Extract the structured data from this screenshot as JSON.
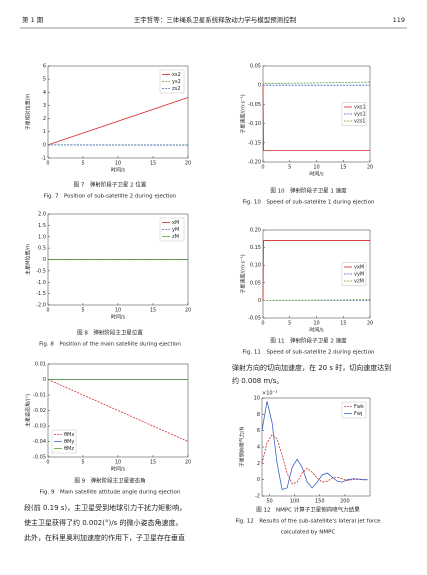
{
  "header": {
    "issue": "第 1 期",
    "running_title": "王宇哲等：三体绳系卫星系统释放动力学与模型预测控制",
    "page": "119"
  },
  "chart_data": [
    {
      "type": "line",
      "ylabel": "子星相对位置/m",
      "xlabel": "时间/s",
      "x": [
        0,
        20
      ],
      "xlim": [
        0,
        20
      ],
      "xticks": [
        0,
        5,
        10,
        15,
        20
      ],
      "ylim": [
        -1,
        6
      ],
      "yticks": [
        -1,
        0,
        1,
        2,
        3,
        4,
        5,
        6
      ],
      "legend": "upper right",
      "series": [
        {
          "name": "xs2",
          "color": "#d62728",
          "values": [
            0,
            3.6
          ]
        },
        {
          "name": "ys2",
          "color": "#5aa02c",
          "dash": true,
          "values": [
            0,
            0
          ]
        },
        {
          "name": "zs2",
          "color": "#3a62c9",
          "dash": true,
          "values": [
            0,
            -0.02
          ]
        }
      ],
      "caption": [
        "图 7　弹射阶段子卫星 2 位置",
        "Fig. 7　Position of sub-satellite 2 during ejection"
      ]
    },
    {
      "type": "line",
      "ylabel": "主星M位置/m",
      "xlabel": "时间/s",
      "x": [
        0,
        20
      ],
      "xlim": [
        0,
        20
      ],
      "xticks": [
        0,
        5,
        10,
        15,
        20
      ],
      "ylim": [
        -2,
        2
      ],
      "yticks": [
        {
          "value": -2,
          "label": "-2.0"
        },
        -1.5,
        {
          "value": -1,
          "label": "-1.0"
        },
        -0.5,
        0,
        0.5,
        {
          "value": 1,
          "label": "1.0"
        },
        1.5,
        {
          "value": 2,
          "label": "2.0"
        }
      ],
      "legend": "upper right",
      "series": [
        {
          "name": "xM",
          "color": "#d62728",
          "values": [
            0,
            0
          ]
        },
        {
          "name": "yM",
          "color": "#3a62c9",
          "dash": true,
          "values": [
            0,
            0
          ]
        },
        {
          "name": "zM",
          "color": "#5aa02c",
          "values": [
            0,
            0
          ]
        }
      ],
      "caption": [
        "图 8　弹射阶段主卫星位置",
        "Fig. 8　Position of the main satellite during ejection"
      ]
    },
    {
      "type": "line",
      "ylabel": "主星姿态角/(°)",
      "xlabel": "时间/s",
      "x": [
        0,
        20
      ],
      "xlim": [
        0,
        20
      ],
      "xticks": [
        0,
        5,
        10,
        15,
        20
      ],
      "ylim": [
        -0.05,
        0.01
      ],
      "yticks": [
        -0.05,
        -0.04,
        -0.03,
        -0.02,
        -0.01,
        0,
        0.01
      ],
      "legend": "lower left",
      "series": [
        {
          "name": "θMx",
          "color": "#d62728",
          "dash": true,
          "values": [
            0,
            -0.04
          ]
        },
        {
          "name": "θMy",
          "color": "#3a62c9",
          "values": [
            0,
            0
          ]
        },
        {
          "name": "θMz",
          "color": "#5aa02c",
          "values": [
            0,
            0
          ]
        }
      ],
      "caption": [
        "图 9　弹射阶段主卫星姿态角",
        "Fig. 9　Main satellite attitude angle during ejection"
      ]
    },
    {
      "type": "line",
      "ylabel": "子星速度/(m·s⁻¹)",
      "xlabel": "时间/s",
      "x": [
        0,
        0.1,
        20
      ],
      "xlim": [
        0,
        20
      ],
      "xticks": [
        0,
        5,
        10,
        15,
        20
      ],
      "ylim": [
        -0.2,
        0.05
      ],
      "yticks": [
        {
          "value": -0.2,
          "label": "-0.20"
        },
        -0.15,
        {
          "value": -0.1,
          "label": "-0.10"
        },
        -0.05,
        0,
        0.05
      ],
      "legend": "center right",
      "series": [
        {
          "name": "vxs1",
          "color": "#d62728",
          "values": [
            0,
            -0.17,
            -0.17
          ]
        },
        {
          "name": "vys1",
          "color": "#3a62c9",
          "dash": true,
          "values": [
            0,
            0,
            0
          ]
        },
        {
          "name": "vzs1",
          "color": "#5aa02c",
          "dash": true,
          "values": [
            0,
            0.004,
            0.008
          ]
        }
      ],
      "caption": [
        "图 10　弹射阶段子卫星 1 速度",
        "Fig. 10　Speed of sub-satellite 1 during ejection"
      ]
    },
    {
      "type": "line",
      "ylabel": "子星速度/(m·s⁻¹)",
      "xlabel": "时间/s",
      "x": [
        0,
        0.1,
        20
      ],
      "xlim": [
        0,
        20
      ],
      "xticks": [
        0,
        5,
        10,
        15,
        20
      ],
      "ylim": [
        -0.05,
        0.2
      ],
      "yticks": [
        -0.05,
        0,
        0.05,
        {
          "value": 0.1,
          "label": "0.10"
        },
        0.15,
        {
          "value": 0.2,
          "label": "0.20"
        }
      ],
      "legend": "center right",
      "series": [
        {
          "name": "vxM",
          "color": "#d62728",
          "values": [
            0,
            0.17,
            0.17
          ]
        },
        {
          "name": "vyM",
          "color": "#3a62c9",
          "dash": true,
          "values": [
            0,
            0,
            0
          ]
        },
        {
          "name": "vzM",
          "color": "#5aa02c",
          "dash": true,
          "values": [
            0,
            0,
            0.002
          ]
        }
      ],
      "caption": [
        "图 11　弹射阶段子卫星 2 速度",
        "Fig. 11　Speed of sub-satellite 2 during ejection"
      ]
    },
    {
      "type": "line",
      "ylabel": "子星侧向喷气力/N",
      "y_multiplier": "×10⁻³",
      "x": [
        35,
        45,
        55,
        65,
        75,
        85,
        95,
        105,
        115,
        125,
        135,
        145,
        155,
        165,
        175,
        185,
        195,
        205,
        215,
        225,
        235,
        245
      ],
      "xlim": [
        35,
        250
      ],
      "xticks": [
        50,
        100,
        150,
        200
      ],
      "ylim": [
        -2,
        10
      ],
      "yticks": [
        -2,
        0,
        2,
        4,
        6,
        8,
        10
      ],
      "legend": "upper right",
      "series": [
        {
          "name": "Fwk",
          "color": "#d62728",
          "dash": true,
          "values": [
            2,
            4.5,
            5.5,
            5,
            3,
            0.8,
            -0.5,
            -0.3,
            0.8,
            1.4,
            0.9,
            0.2,
            -0.3,
            -0.2,
            0.2,
            0.3,
            0.1,
            -0.1,
            0,
            0.05,
            0,
            0
          ]
        },
        {
          "name": "Fwj",
          "color": "#3a62c9",
          "values": [
            6,
            9.6,
            7,
            2,
            -1.2,
            -1,
            1.5,
            2.5,
            1.5,
            -0.3,
            -1,
            -0.3,
            0.6,
            0.8,
            0.3,
            -0.2,
            -0.3,
            0,
            0.1,
            0.1,
            0,
            0
          ]
        }
      ],
      "caption": [
        "图 12　NMPC 计算子卫星侧向喷气力结果",
        "Fig. 12　Results of the sub-satellite's lateral jet force",
        "calculated by NMPC"
      ]
    }
  ],
  "text": {
    "right": [
      "弹射方向的切向加速度，在 20 s 时，切向速度达到",
      "约 0.008 m/s。"
    ],
    "left": [
      "段(前 0.19 s)，主卫星受到地球引力干扰力矩影响，",
      "使主卫星获得了约 0.002(°)/s 的微小姿态角速度。",
      "此外，在科里奥利加速度的作用下，子卫星存在垂直"
    ]
  }
}
